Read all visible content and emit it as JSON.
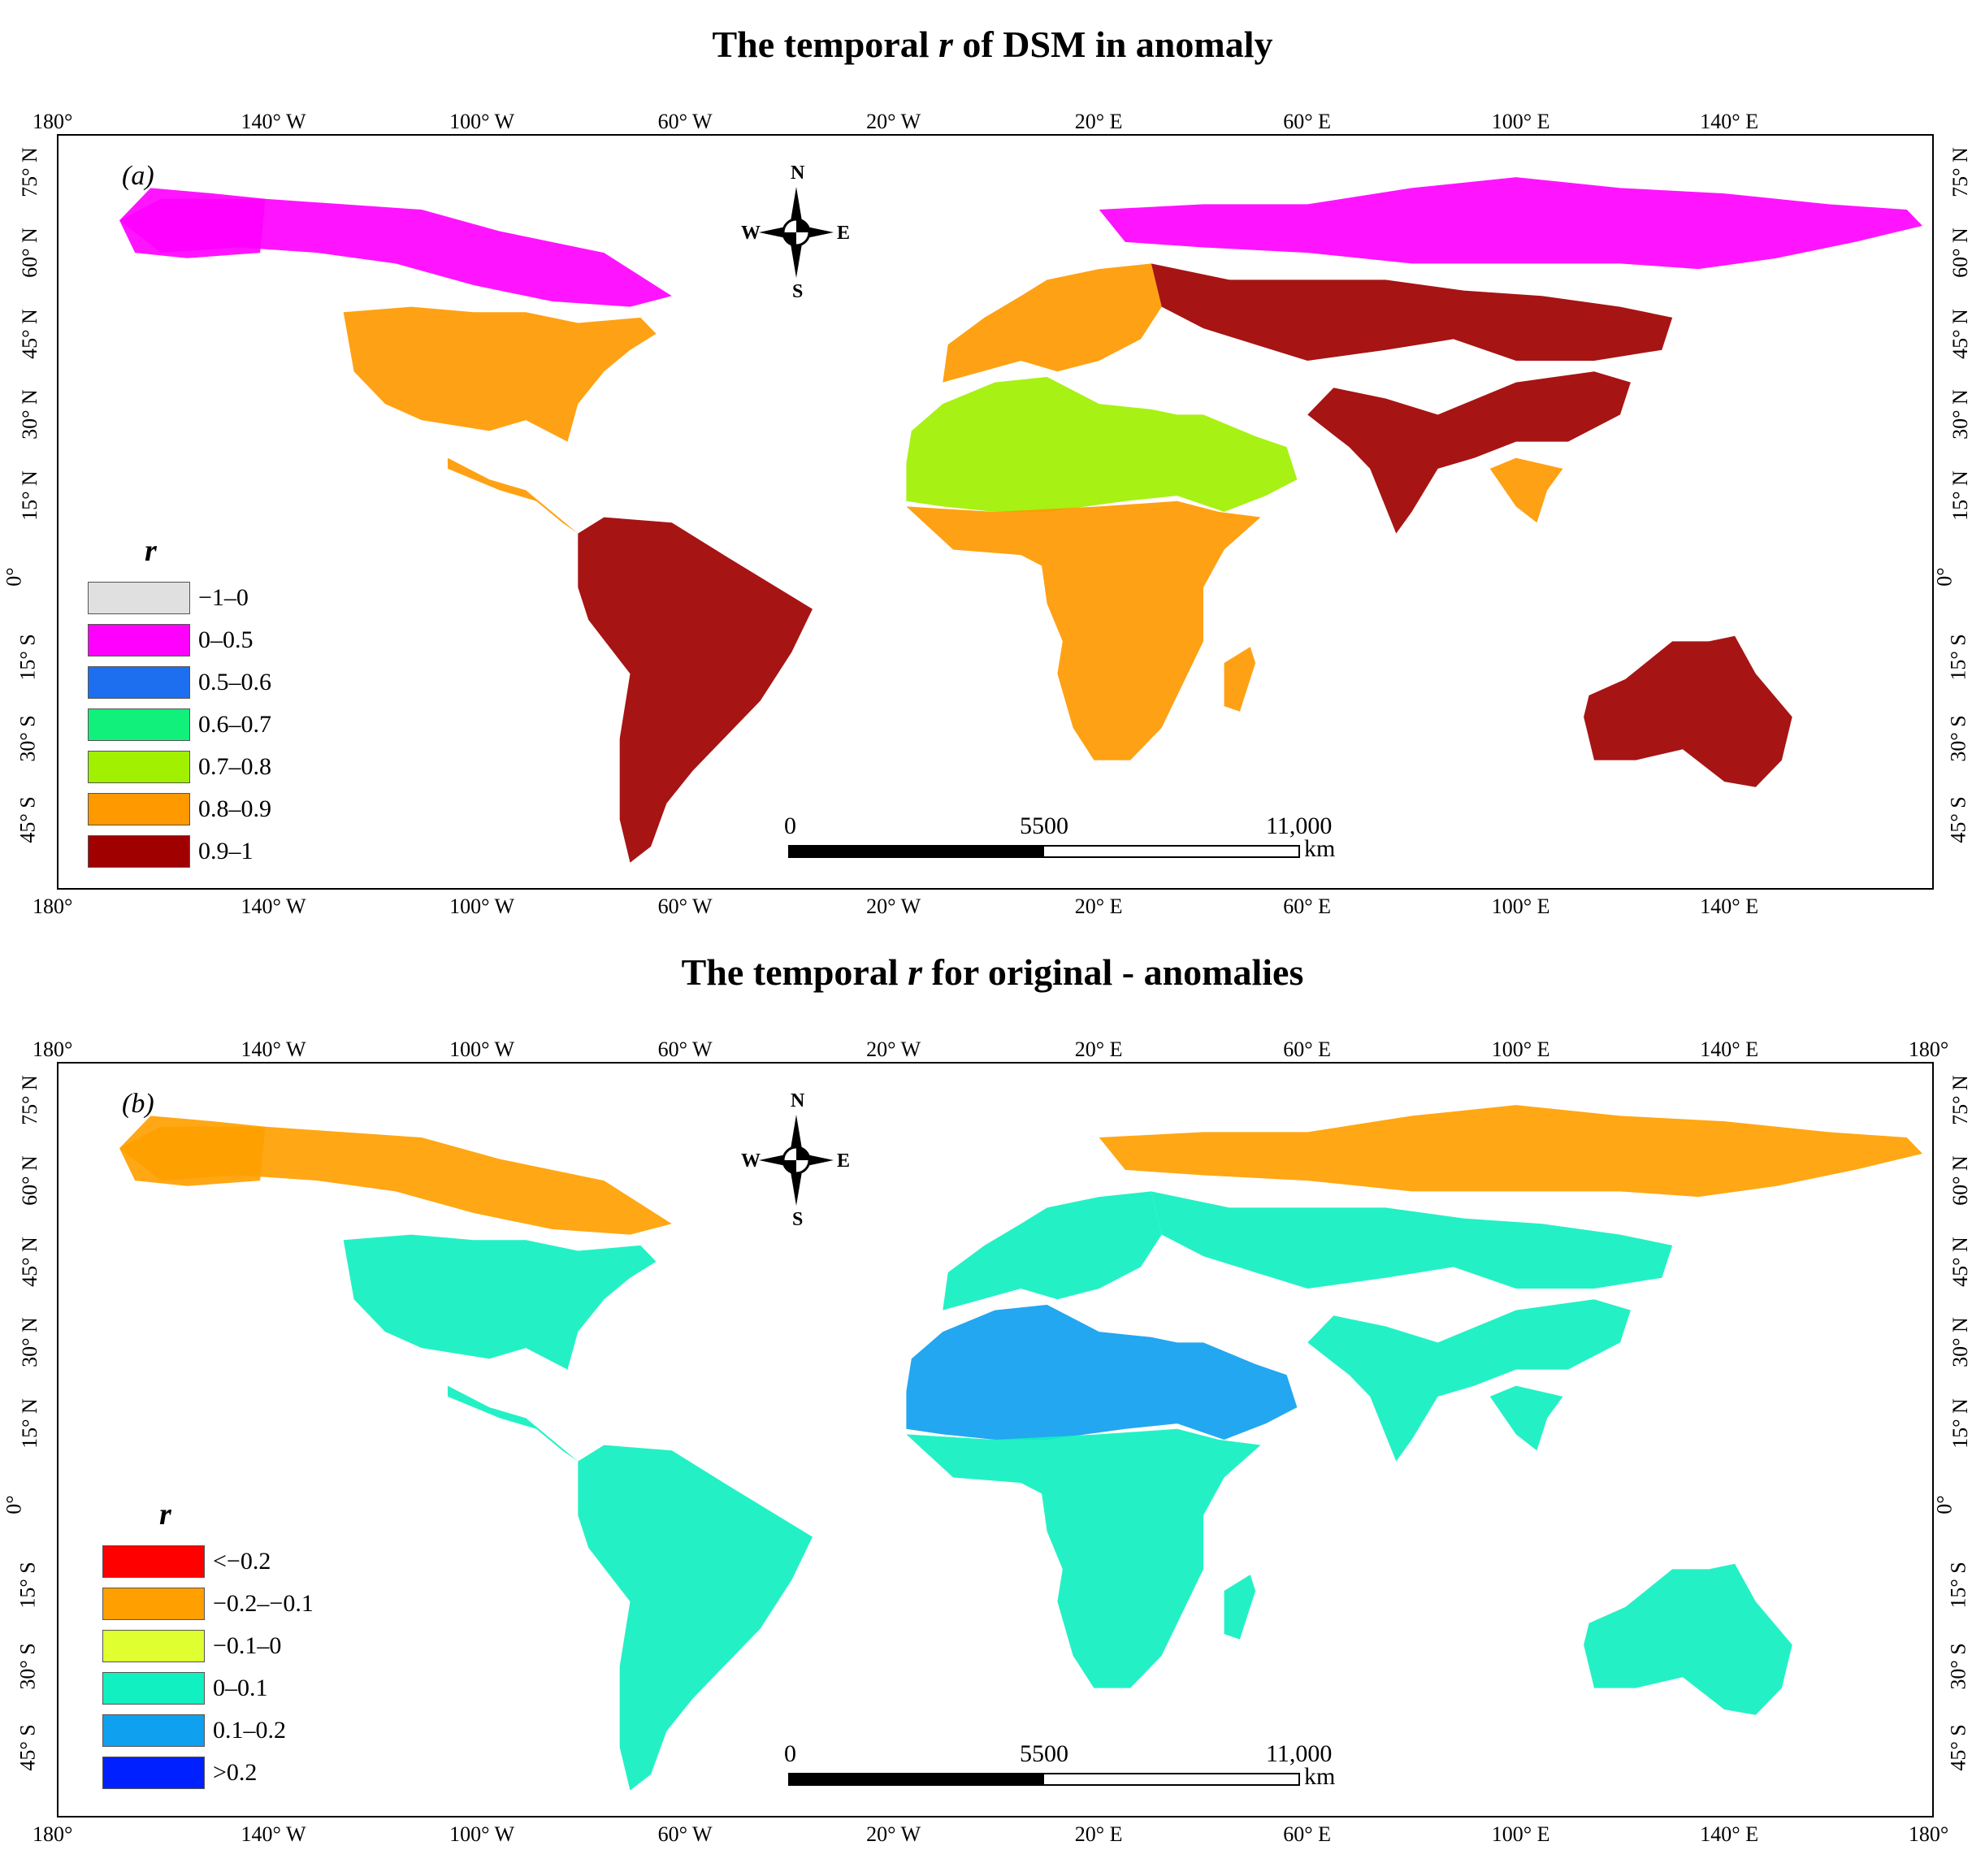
{
  "panels": [
    {
      "title_pre": "The temporal ",
      "title_var": "r",
      "title_post": " of DSM in anomaly",
      "panel_label": "(a)",
      "top_lon_ticks": [
        "180°",
        "140° W",
        "100° W",
        "60° W",
        "20° W",
        "20° E",
        "60° E",
        "100° E",
        "140° E"
      ],
      "bottom_lon_ticks": [
        "180°",
        "140° W",
        "100° W",
        "60° W",
        "20° W",
        "20° E",
        "60° E",
        "100° E",
        "140° E"
      ],
      "lat_ticks": [
        "75° N",
        "60° N",
        "45° N",
        "30° N",
        "15° N",
        "0°",
        "15° S",
        "30° S",
        "45° S"
      ],
      "legend_title": "r",
      "legend": [
        {
          "label": "−1–0",
          "color": "#e0e0e0"
        },
        {
          "label": "0–0.5",
          "color": "#ff00ff"
        },
        {
          "label": "0.5–0.6",
          "color": "#1e6ff0"
        },
        {
          "label": "0.6–0.7",
          "color": "#10f07a"
        },
        {
          "label": "0.7–0.8",
          "color": "#a0f000"
        },
        {
          "label": "0.8–0.9",
          "color": "#ff9900"
        },
        {
          "label": "0.9–1",
          "color": "#a00000"
        }
      ],
      "land_palette": {
        "boreal": "#ff00ff",
        "temperate": "#ff9900",
        "dry": "#a00000",
        "desert": "#a0f000",
        "tropic": "#ff9900",
        "aus": "#a00000"
      }
    },
    {
      "title_pre": "The temporal ",
      "title_var": "r",
      "title_post": " for original - anomalies",
      "panel_label": "(b)",
      "top_lon_ticks": [
        "180°",
        "140° W",
        "100° W",
        "60° W",
        "20° W",
        "20° E",
        "60° E",
        "100° E",
        "140° E",
        "180°"
      ],
      "bottom_lon_ticks": [
        "180°",
        "140° W",
        "100° W",
        "60° W",
        "20° W",
        "20° E",
        "60° E",
        "100° E",
        "140° E",
        "180°"
      ],
      "lat_ticks": [
        "75° N",
        "60° N",
        "45° N",
        "30° N",
        "15° N",
        "0°",
        "15° S",
        "30° S",
        "45° S"
      ],
      "legend_title": "r",
      "legend": [
        {
          "label": "<−0.2",
          "color": "#ff0000"
        },
        {
          "label": "−0.2–−0.1",
          "color": "#ffa000"
        },
        {
          "label": "−0.1–0",
          "color": "#e0ff30"
        },
        {
          "label": "0–0.1",
          "color": "#10f0c0"
        },
        {
          "label": "0.1–0.2",
          "color": "#10a0f0"
        },
        {
          "label": ">0.2",
          "color": "#0020ff"
        }
      ],
      "land_palette": {
        "boreal": "#ffa000",
        "temperate": "#10f0c0",
        "dry": "#10f0c0",
        "desert": "#10a0f0",
        "tropic": "#10f0c0",
        "aus": "#10f0c0"
      }
    }
  ],
  "compass": {
    "n": "N",
    "s": "S",
    "e": "E",
    "w": "W"
  },
  "scalebar": {
    "labels": [
      "0",
      "5500",
      "11,000"
    ],
    "unit": "km"
  }
}
